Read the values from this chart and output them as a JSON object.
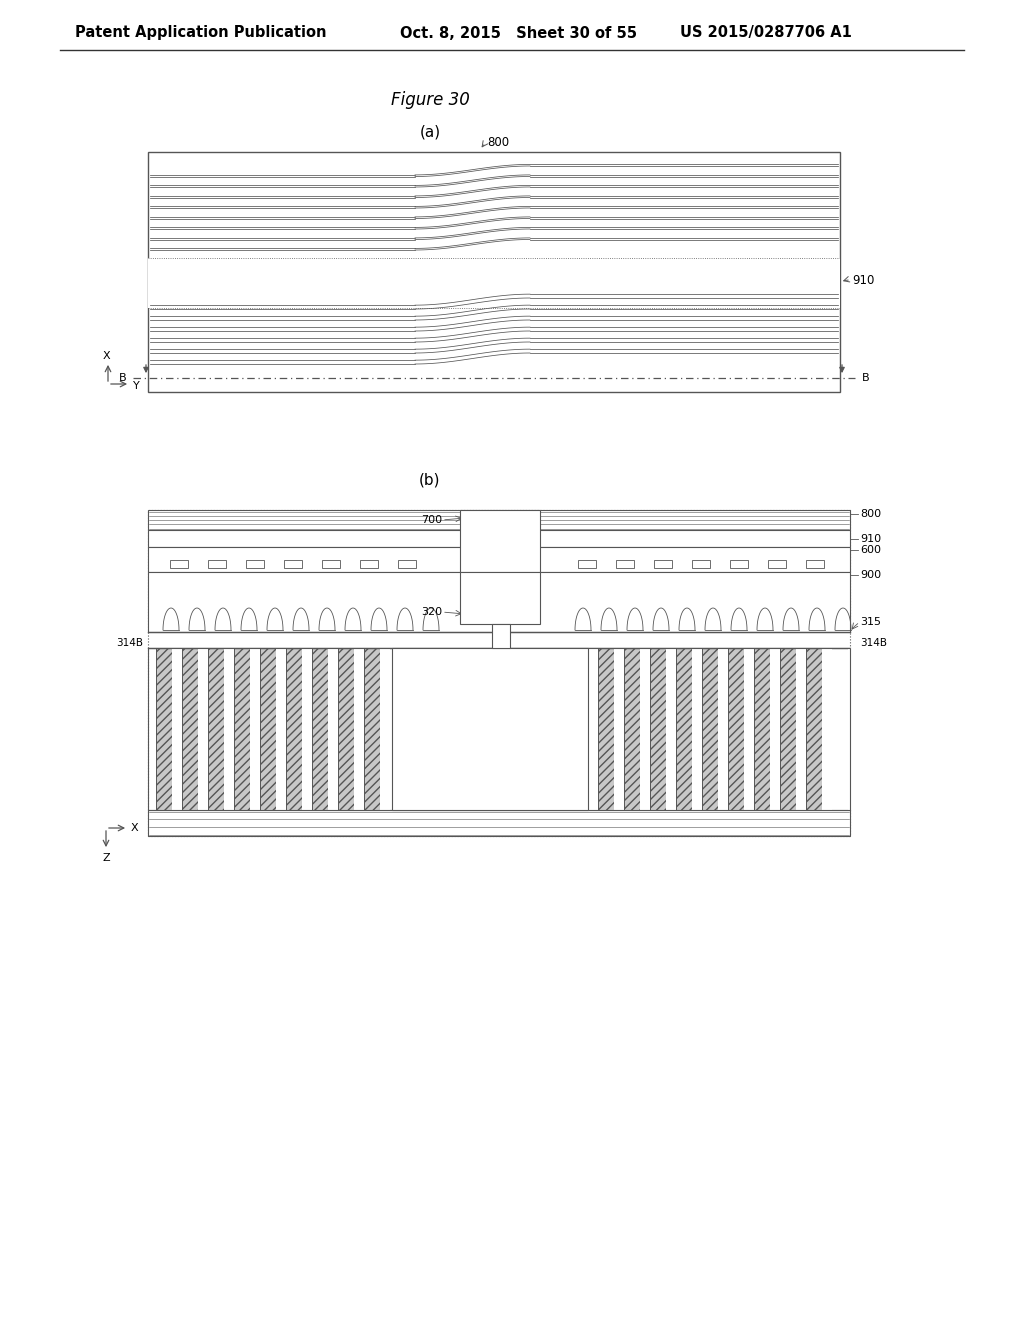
{
  "title": "Figure 30",
  "header_left": "Patent Application Publication",
  "header_mid": "Oct. 8, 2015   Sheet 30 of 55",
  "header_right": "US 2015/0287706 A1",
  "bg_color": "#ffffff",
  "text_color": "#000000",
  "line_color": "#555555",
  "label_a": "(a)",
  "label_b": "(b)",
  "label_800_a": "800",
  "label_910": "910",
  "label_800_b": "800",
  "label_910_b": "910",
  "label_600_b": "600",
  "label_900_b": "900",
  "label_700": "700",
  "label_320": "320",
  "label_315": "315",
  "label_314B_left": "314B",
  "label_314B_right": "314B",
  "label_B_left": "B",
  "label_B_right": "B"
}
